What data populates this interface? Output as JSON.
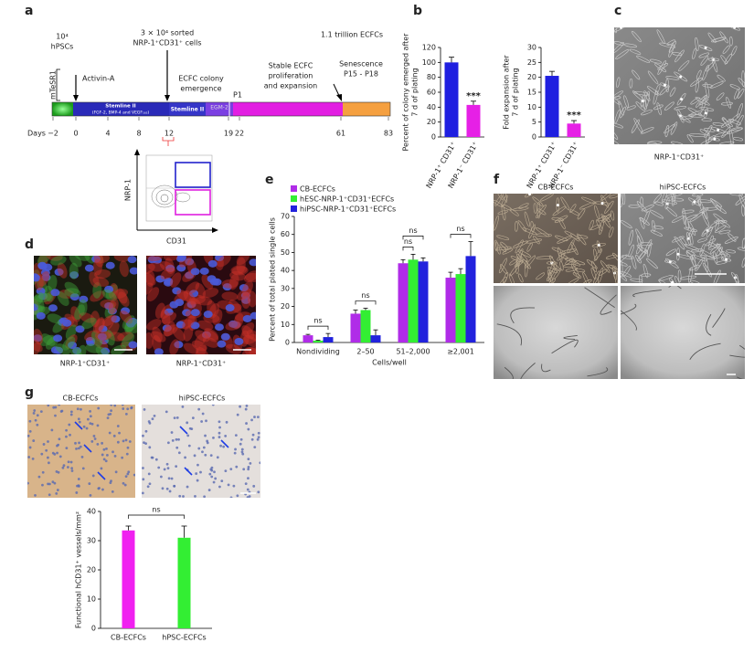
{
  "panels": {
    "a": {
      "letter": "a",
      "cells": "10⁴",
      "cells_type": "hPSCs",
      "mtesr": "mTeSR1",
      "activin": "Activin-A",
      "sorted_1": "3 × 10⁴ sorted",
      "sorted_2": "NRP-1⁺CD31⁺ cells",
      "trillion": "1.1 trillion ECFCs",
      "emergence_1": "ECFC colony",
      "emergence_2": "emergence",
      "p1": "P1",
      "stable_1": "Stable ECFC",
      "stable_2": "proliferation",
      "stable_3": "and expansion",
      "senescence": "Senescence",
      "passages": "P15 - P18",
      "stemline_1": "Stemline II",
      "stemline_1_sub": "(FGF-2, BMP-4 and VEGF₁₆₅)",
      "stemline_2": "Stemline II",
      "egm": "EGM-2",
      "days_label": "Days",
      "days": [
        "−2",
        "0",
        "4",
        "8",
        "12",
        "19",
        "22",
        "61",
        "83"
      ],
      "flow_y": "NRP-1",
      "flow_x": "CD31"
    },
    "b": {
      "letter": "b"
    },
    "c": {
      "letter": "c",
      "caption": "NRP-1⁺CD31⁺"
    },
    "d": {
      "letter": "d",
      "captions": [
        "NRP-1⁺CD31⁺",
        "NRP-1⁺CD31⁺"
      ]
    },
    "e": {
      "letter": "e"
    },
    "f": {
      "letter": "f",
      "titles": [
        "CB-ECFCs",
        "hiPSC-ECFCs"
      ]
    },
    "g": {
      "letter": "g",
      "titles": [
        "CB-ECFCs",
        "hiPSC-ECFCs"
      ]
    }
  },
  "chart_data": [
    {
      "type": "bar",
      "ylabel": [
        "Percent of colony emerged after",
        "7 d of plating"
      ],
      "categories": [
        "NRP-1⁺ CD31⁺",
        "NRP-1⁻ CD31⁺"
      ],
      "values": [
        100,
        43
      ],
      "errors": [
        7,
        5
      ],
      "colors": [
        "#1f1fe0",
        "#e620e6"
      ],
      "ylim": [
        0,
        120
      ],
      "yticks": [
        0,
        20,
        40,
        60,
        80,
        100,
        120
      ],
      "annotations": [
        "***"
      ]
    },
    {
      "type": "bar",
      "ylabel": [
        "Fold expansion after",
        "7 d of plating"
      ],
      "categories": [
        "NRP-1⁺ CD31⁺",
        "NRP-1⁻ CD31⁺"
      ],
      "values": [
        20.5,
        4.5
      ],
      "errors": [
        1.5,
        1
      ],
      "colors": [
        "#1f1fe0",
        "#e620e6"
      ],
      "ylim": [
        0,
        30
      ],
      "yticks": [
        0,
        5,
        10,
        15,
        20,
        25,
        30
      ],
      "annotations": [
        "***"
      ]
    },
    {
      "type": "bar",
      "ylabel": [
        "Percent of total plated single cells"
      ],
      "xlabel": "Cells/well",
      "categories": [
        "Nondividing",
        "2–50",
        "51–2,000",
        "≥2,001"
      ],
      "series": [
        {
          "name": "CB-ECFCs",
          "color": "#b02ce8",
          "values": [
            4,
            16,
            44,
            36
          ],
          "errors": [
            0.5,
            2,
            2,
            3
          ]
        },
        {
          "name": "hESC-NRP-1⁺CD31⁺ECFCs",
          "color": "#33ee33",
          "values": [
            1,
            18,
            46,
            38
          ],
          "errors": [
            0.3,
            1,
            3,
            3
          ]
        },
        {
          "name": "hiPSC-NRP-1⁺CD31⁺ECFCs",
          "color": "#2222dd",
          "values": [
            3,
            4,
            45,
            48
          ],
          "errors": [
            2,
            3,
            2,
            8
          ]
        }
      ],
      "ylim": [
        0,
        70
      ],
      "yticks": [
        0,
        10,
        20,
        30,
        40,
        50,
        60,
        70
      ],
      "annotations": [
        "ns",
        "ns",
        "ns",
        "ns",
        "ns"
      ]
    },
    {
      "type": "bar",
      "ylabel": [
        "Functional hCD31⁺ vessels/mm²"
      ],
      "categories": [
        "CB-ECFCs",
        "hPSC-ECFCs"
      ],
      "values": [
        33.5,
        31
      ],
      "errors": [
        1.5,
        4
      ],
      "colors": [
        "#f020f0",
        "#33ee33"
      ],
      "ylim": [
        0,
        40
      ],
      "yticks": [
        0,
        10,
        20,
        30,
        40
      ],
      "annotations": [
        "ns"
      ]
    }
  ]
}
